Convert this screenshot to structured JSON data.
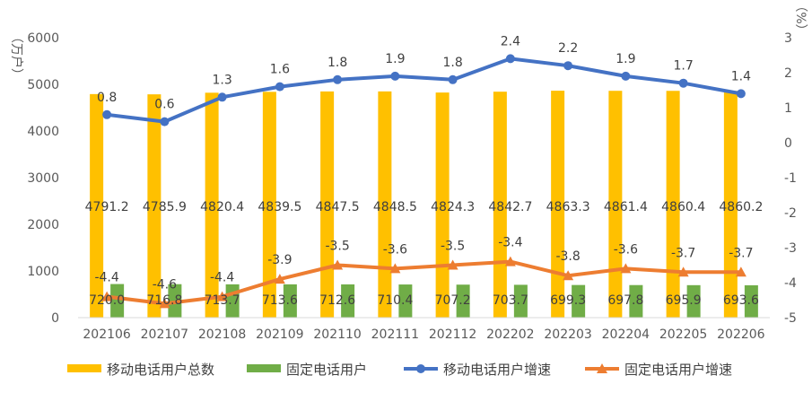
{
  "chart_data": {
    "type": "bar",
    "categories": [
      "202106",
      "202107",
      "202108",
      "202109",
      "202110",
      "202111",
      "202112",
      "202202",
      "202203",
      "202204",
      "202205",
      "202206"
    ],
    "series": [
      {
        "name": "移动电话用户总数",
        "type": "bar",
        "axis": "left",
        "color": "#FFC000",
        "values": [
          4791.2,
          4785.9,
          4820.4,
          4839.5,
          4847.5,
          4848.5,
          4824.3,
          4842.7,
          4863.3,
          4861.4,
          4860.4,
          4860.2
        ],
        "labels": [
          "4791.2",
          "4785.9",
          "4820.4",
          "4839.5",
          "4847.5",
          "4848.5",
          "4824.3",
          "4842.7",
          "4863.3",
          "4861.4",
          "4860.4",
          "4860.2"
        ]
      },
      {
        "name": "固定电话用户",
        "type": "bar",
        "axis": "left",
        "color": "#70AD47",
        "values": [
          720.0,
          716.8,
          713.7,
          713.6,
          712.6,
          710.4,
          707.2,
          703.7,
          699.3,
          697.8,
          695.9,
          693.6
        ],
        "labels": [
          "720.0",
          "716.8",
          "713.7",
          "713.6",
          "712.6",
          "710.4",
          "707.2",
          "703.7",
          "699.3",
          "697.8",
          "695.9",
          "693.6"
        ]
      },
      {
        "name": "移动电话用户增速",
        "type": "line",
        "axis": "right",
        "color": "#4472C4",
        "marker": "circle",
        "values": [
          0.8,
          0.6,
          1.3,
          1.6,
          1.8,
          1.9,
          1.8,
          2.4,
          2.2,
          1.9,
          1.7,
          1.4
        ],
        "labels": [
          "0.8",
          "0.6",
          "1.3",
          "1.6",
          "1.8",
          "1.9",
          "1.8",
          "2.4",
          "2.2",
          "1.9",
          "1.7",
          "1.4"
        ]
      },
      {
        "name": "固定电话用户增速",
        "type": "line",
        "axis": "right",
        "color": "#ED7D31",
        "marker": "triangle",
        "values": [
          -4.4,
          -4.6,
          -4.4,
          -3.9,
          -3.5,
          -3.6,
          -3.5,
          -3.4,
          -3.8,
          -3.6,
          -3.7,
          -3.7
        ],
        "labels": [
          "-4.4",
          "-4.6",
          "-4.4",
          "-3.9",
          "-3.5",
          "-3.6",
          "-3.5",
          "-3.4",
          "-3.8",
          "-3.6",
          "-3.7",
          "-3.7"
        ]
      }
    ],
    "y_left": {
      "label": "（万户）",
      "min": 0,
      "max": 6000,
      "ticks": [
        "0",
        "1000",
        "2000",
        "3000",
        "4000",
        "5000",
        "6000"
      ]
    },
    "y_right": {
      "label": "（%）",
      "min": -5,
      "max": 3,
      "ticks": [
        "-5",
        "-4",
        "-3",
        "-2",
        "-1",
        "0",
        "1",
        "2",
        "3"
      ]
    },
    "grid": false,
    "legend_position": "bottom"
  }
}
